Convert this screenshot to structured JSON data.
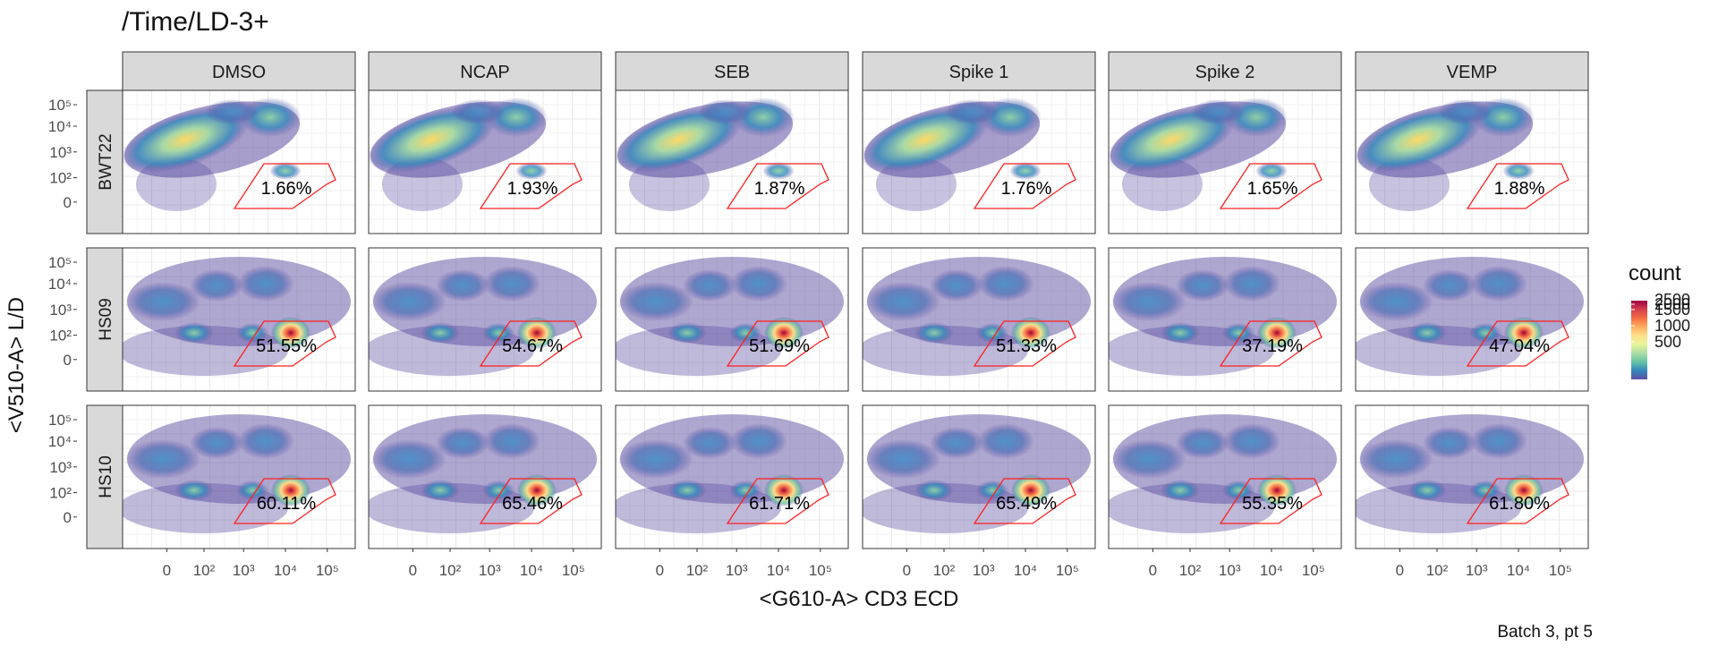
{
  "title": "/Time/LD-3+",
  "caption": "Batch 3, pt 5",
  "chart_data": {
    "type": "faceted-density-scatter",
    "xlabel": "<G610-A> CD3 ECD",
    "ylabel": "<V510-A> L/D",
    "x_ticks": [
      "0",
      "10²",
      "10³",
      "10⁴",
      "10⁵"
    ],
    "y_ticks": [
      "10⁵",
      "10⁴",
      "10³",
      "10²",
      "0"
    ],
    "columns": [
      "DMSO",
      "NCAP",
      "SEB",
      "Spike 1",
      "Spike 2",
      "VEMP"
    ],
    "rows": [
      "BWT22",
      "HS09",
      "HS10"
    ],
    "gate_percent": [
      [
        "1.66%",
        "1.93%",
        "1.87%",
        "1.76%",
        "1.65%",
        "1.88%"
      ],
      [
        "51.55%",
        "54.67%",
        "51.69%",
        "51.33%",
        "37.19%",
        "47.04%"
      ],
      [
        "60.11%",
        "65.46%",
        "61.71%",
        "65.49%",
        "55.35%",
        "61.80%"
      ]
    ],
    "gate_color": "#ff2020",
    "legend": {
      "title": "count",
      "labels": [
        "2500",
        "2000",
        "1500",
        "1000",
        "500"
      ],
      "colors": [
        "#9e0142",
        "#d53e4f",
        "#f46d43",
        "#fdae61",
        "#fee08b",
        "#e6f598",
        "#abdda4",
        "#66c2a5",
        "#3288bd",
        "#5e4fa2"
      ]
    },
    "grid": true,
    "strip_fill": "#d9d9d9"
  }
}
